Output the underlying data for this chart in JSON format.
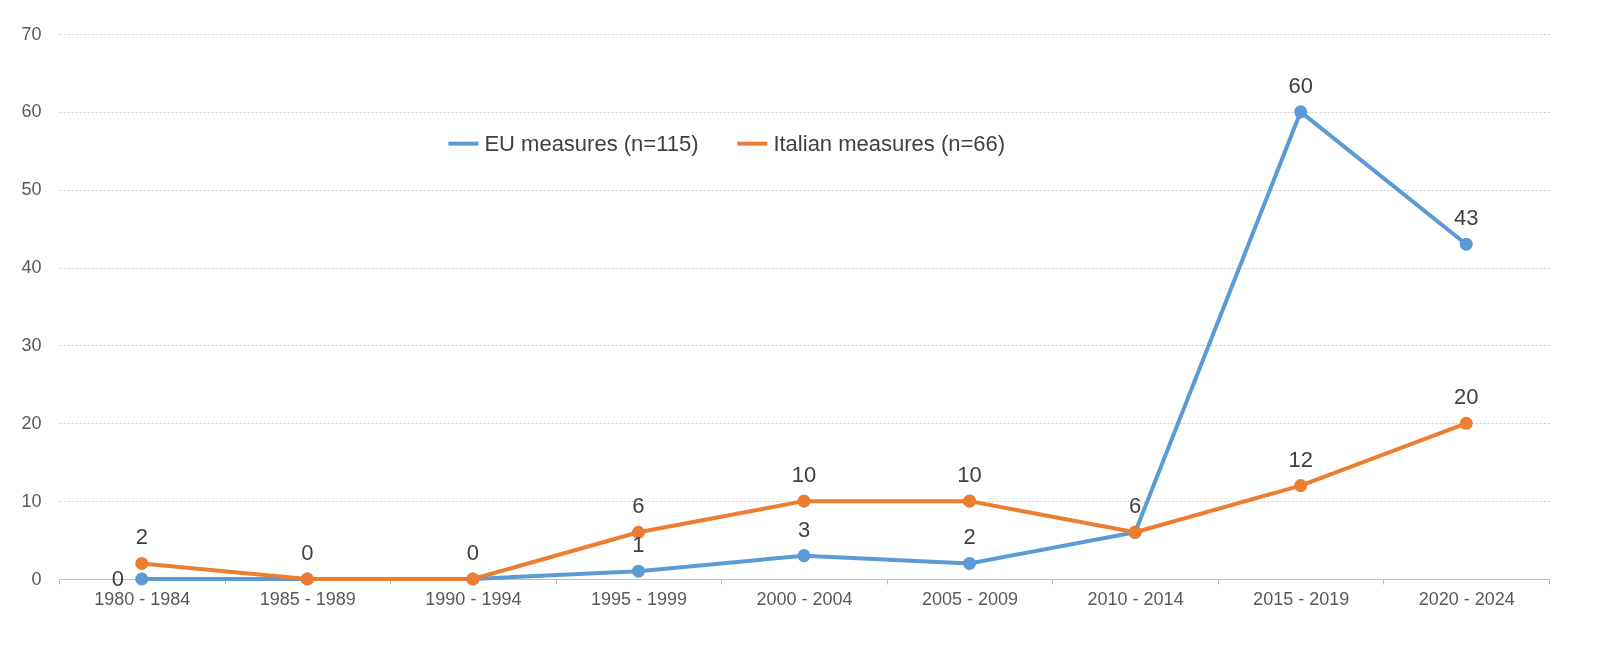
{
  "chart_data": {
    "type": "line",
    "categories": [
      "1980 - 1984",
      "1985 - 1989",
      "1990 - 1994",
      "1995 - 1999",
      "2000 - 2004",
      "2005 - 2009",
      "2010 - 2014",
      "2015 - 2019",
      "2020 - 2024"
    ],
    "series": [
      {
        "name": "EU measures (n=115)",
        "color": "#5b9bd5",
        "values": [
          0,
          0,
          0,
          1,
          3,
          2,
          6,
          60,
          43
        ],
        "value_labels": [
          "0",
          "0",
          "0",
          "1",
          "3",
          "2",
          "6",
          "60",
          "43"
        ]
      },
      {
        "name": "Italian measures (n=66)",
        "color": "#ed7d31",
        "values": [
          2,
          0,
          0,
          6,
          10,
          10,
          6,
          12,
          20
        ],
        "value_labels": [
          "2",
          null,
          null,
          "6",
          "10",
          "10",
          null,
          "12",
          "20"
        ]
      }
    ],
    "ylim": [
      0,
      70
    ],
    "yticks": [
      0,
      10,
      20,
      30,
      40,
      50,
      60,
      70
    ],
    "grid": "y",
    "legend": "top",
    "marker": "circle",
    "line_style": "solid"
  }
}
